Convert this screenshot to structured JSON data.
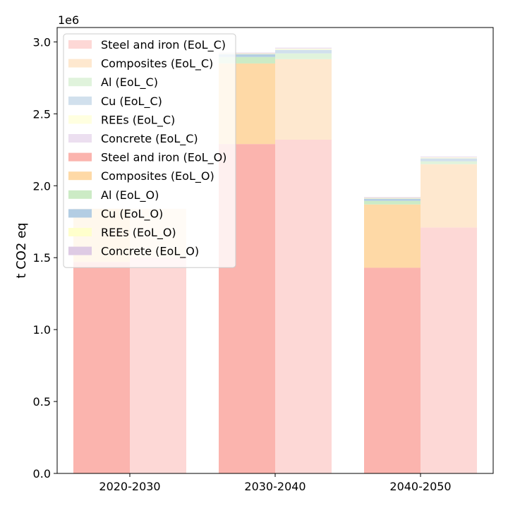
{
  "chart_data": {
    "type": "bar",
    "categories": [
      "2020-2030",
      "2030-2040",
      "2040-2050"
    ],
    "ylabel": "t CO2 eq",
    "xlabel": "",
    "offset_text": "1e6",
    "scale": 1000000,
    "ylim": [
      0,
      3.1
    ],
    "yticks": [
      "0.0",
      "0.5",
      "1.0",
      "1.5",
      "2.0",
      "2.5",
      "3.0"
    ],
    "legend_position": "upper-left",
    "groups": [
      {
        "id": "EoL_O",
        "side": "left",
        "series": [
          {
            "name": "Steel and iron (EoL_O)",
            "color": "#fbb4ae",
            "values": [
              1.47,
              2.29,
              1.43
            ]
          },
          {
            "name": "Composites (EoL_O)",
            "color": "#fed9a6",
            "values": [
              0.37,
              0.56,
              0.44
            ]
          },
          {
            "name": "Al (EoL_O)",
            "color": "#ccebc5",
            "values": [
              0.0,
              0.045,
              0.025
            ]
          },
          {
            "name": "Cu (EoL_O)",
            "color": "#b3cde3",
            "values": [
              0.0,
              0.02,
              0.015
            ]
          },
          {
            "name": "REEs (EoL_O)",
            "color": "#ffffcc",
            "values": [
              0.0,
              0.005,
              0.005
            ]
          },
          {
            "name": "Concrete (EoL_O)",
            "color": "#decbe4",
            "values": [
              0.0,
              0.005,
              0.005
            ]
          }
        ]
      },
      {
        "id": "EoL_C",
        "side": "right",
        "series": [
          {
            "name": "Steel and iron (EoL_C)",
            "color": "#fdd8d6",
            "values": [
              1.5,
              2.32,
              1.71
            ]
          },
          {
            "name": "Composites (EoL_C)",
            "color": "#fee8cf",
            "values": [
              0.34,
              0.56,
              0.44
            ]
          },
          {
            "name": "Al (EoL_C)",
            "color": "#e0f3dc",
            "values": [
              0.0,
              0.04,
              0.02
            ]
          },
          {
            "name": "Cu (EoL_C)",
            "color": "#d1e0ed",
            "values": [
              0.0,
              0.025,
              0.02
            ]
          },
          {
            "name": "REEs (EoL_C)",
            "color": "#ffffe0",
            "values": [
              0.0,
              0.008,
              0.007
            ]
          },
          {
            "name": "Concrete (EoL_C)",
            "color": "#ecdff0",
            "values": [
              0.0,
              0.007,
              0.006
            ]
          }
        ]
      }
    ],
    "legend_order": [
      "Steel and iron (EoL_C)",
      "Composites (EoL_C)",
      "Al (EoL_C)",
      "Cu (EoL_C)",
      "REEs (EoL_C)",
      "Concrete (EoL_C)",
      "Steel and iron (EoL_O)",
      "Composites (EoL_O)",
      "Al (EoL_O)",
      "Cu (EoL_O)",
      "REEs (EoL_O)",
      "Concrete (EoL_O)"
    ]
  }
}
